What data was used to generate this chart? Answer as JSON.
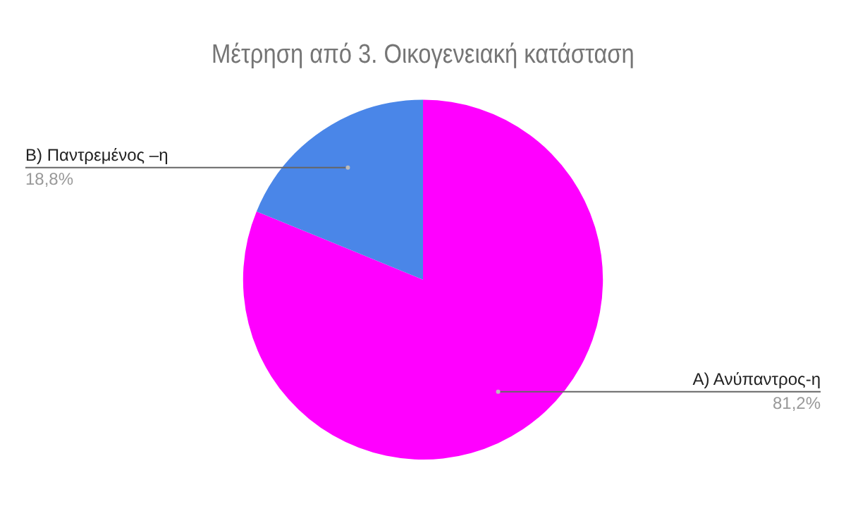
{
  "chart_data": {
    "type": "pie",
    "title": "Μέτρηση από 3. Οικογενειακή κατάσταση",
    "categories": [
      "Α) Ανύπαντρος-η",
      "Β) Παντρεμένος –η"
    ],
    "values": [
      81.2,
      18.8
    ],
    "colors": [
      "#ff00ff",
      "#4a86e8"
    ],
    "value_labels": [
      "81,2%",
      "18,8%"
    ],
    "legend": false
  }
}
